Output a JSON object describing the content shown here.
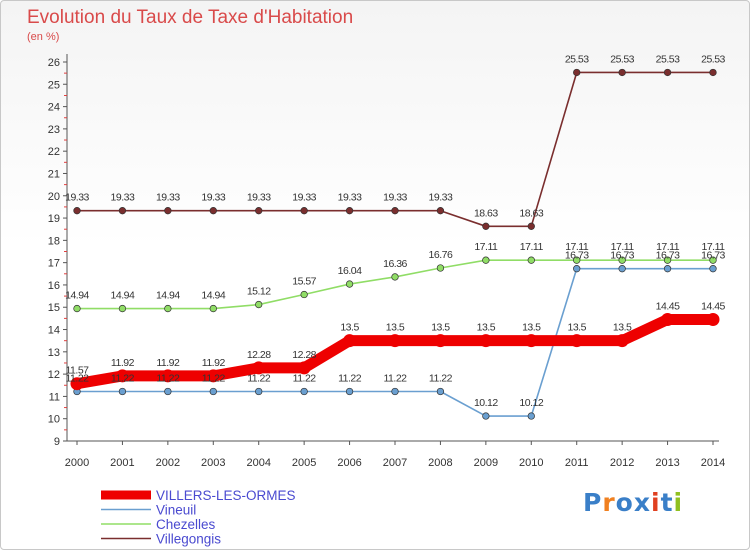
{
  "header": {
    "title": "Evolution du Taux de Taxe d'Habitation",
    "subtitle": "(en %)"
  },
  "chart_data": {
    "type": "line",
    "title": "Evolution du Taux de Taxe d'Habitation",
    "subtitle": "(en %)",
    "xlabel": "",
    "ylabel": "",
    "ylim": [
      9,
      26
    ],
    "x": [
      "2000",
      "2001",
      "2002",
      "2003",
      "2004",
      "2005",
      "2006",
      "2007",
      "2008",
      "2009",
      "2010",
      "2011",
      "2012",
      "2013",
      "2014"
    ],
    "y_ticks": [
      9,
      10,
      11,
      12,
      13,
      14,
      15,
      16,
      17,
      18,
      19,
      20,
      21,
      22,
      23,
      24,
      25,
      26
    ],
    "grid": false,
    "legend_position": "bottom-left",
    "series": [
      {
        "name": "VILLERS-LES-ORMES",
        "color": "#ee0000",
        "emphasis": true,
        "values": [
          11.57,
          11.92,
          11.92,
          11.92,
          12.28,
          12.28,
          13.5,
          13.5,
          13.5,
          13.5,
          13.5,
          13.5,
          13.5,
          14.45,
          14.45
        ],
        "labels": [
          "11.57",
          "11.92",
          "11.92",
          "11.92",
          "12.28",
          "12.28",
          "13.5",
          "13.5",
          "13.5",
          "13.5",
          "13.5",
          "13.5",
          "13.5",
          "14.45",
          "14.45"
        ]
      },
      {
        "name": "Vineuil",
        "color": "#6a9fd0",
        "values": [
          11.22,
          11.22,
          11.22,
          11.22,
          11.22,
          11.22,
          11.22,
          11.22,
          11.22,
          10.12,
          10.12,
          16.73,
          16.73,
          16.73,
          16.73
        ],
        "labels": [
          "11.22",
          "11.22",
          "11.22",
          "11.22",
          "11.22",
          "11.22",
          "11.22",
          "11.22",
          "11.22",
          "10.12",
          "10.12",
          "16.73",
          "16.73",
          "16.73",
          "16.73"
        ]
      },
      {
        "name": "Chezelles",
        "color": "#90dd66",
        "values": [
          14.94,
          14.94,
          14.94,
          14.94,
          15.12,
          15.57,
          16.04,
          16.36,
          16.76,
          17.11,
          17.11,
          17.11,
          17.11,
          17.11,
          17.11
        ],
        "labels": [
          "14.94",
          "14.94",
          "14.94",
          "14.94",
          "15.12",
          "15.57",
          "16.04",
          "16.36",
          "16.76",
          "17.11",
          "17.11",
          "17.11",
          "17.11",
          "17.11",
          "17.11"
        ]
      },
      {
        "name": "Villegongis",
        "color": "#7a2e2e",
        "values": [
          19.33,
          19.33,
          19.33,
          19.33,
          19.33,
          19.33,
          19.33,
          19.33,
          19.33,
          18.63,
          18.63,
          25.53,
          25.53,
          25.53,
          25.53
        ],
        "labels": [
          "19.33",
          "19.33",
          "19.33",
          "19.33",
          "19.33",
          "19.33",
          "19.33",
          "19.33",
          "19.33",
          "18.63",
          "18.63",
          "25.53",
          "25.53",
          "25.53",
          "25.53"
        ]
      }
    ]
  },
  "logo": {
    "letters": [
      "P",
      "r",
      "o",
      "x",
      "i",
      "t",
      "i"
    ],
    "colors": [
      "#3a7fc8",
      "#f08020",
      "#3a7fc8",
      "#3a7fc8",
      "#e04020",
      "#3a7fc8",
      "#90c020"
    ]
  }
}
